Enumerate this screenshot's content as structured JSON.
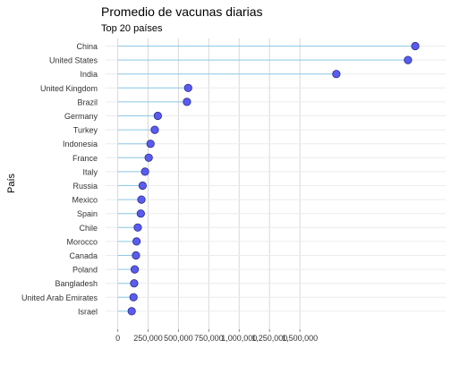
{
  "chart_data": {
    "type": "lollipop",
    "title": "Promedio de vacunas diarias",
    "subtitle": "Top 20 países",
    "ylabel": "País",
    "xlabel": "",
    "xlim": [
      -100000,
      2700000
    ],
    "x_ticks": [
      0,
      250000,
      500000,
      750000,
      1000000,
      1250000,
      1500000
    ],
    "x_tick_labels": [
      "0",
      "250,000",
      "500,000",
      "750,000",
      "1,000,000",
      "1,250,000",
      "1,500,000"
    ],
    "grid": true,
    "point_color": "#5a5cf0",
    "stem_color": "#8ecae6",
    "categories": [
      "China",
      "United States",
      "India",
      "United Kingdom",
      "Brazil",
      "Germany",
      "Turkey",
      "Indonesia",
      "France",
      "Italy",
      "Russia",
      "Mexico",
      "Spain",
      "Chile",
      "Morocco",
      "Canada",
      "Poland",
      "Bangladesh",
      "United Arab Emirates",
      "Israel"
    ],
    "values": [
      2450000,
      2390000,
      1800000,
      580000,
      570000,
      330000,
      305000,
      270000,
      255000,
      225000,
      205000,
      195000,
      190000,
      165000,
      155000,
      150000,
      140000,
      135000,
      130000,
      115000
    ]
  }
}
